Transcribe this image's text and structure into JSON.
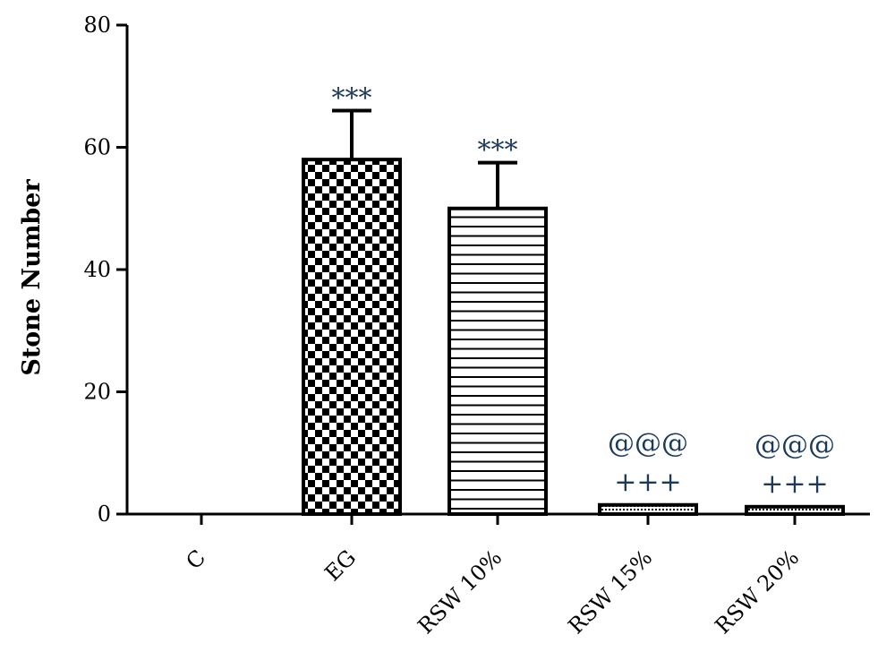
{
  "chart_data": {
    "type": "bar",
    "title": "",
    "xlabel": "",
    "ylabel": "Stone Number",
    "ylim": [
      0,
      80
    ],
    "yticks": [
      0,
      20,
      40,
      60,
      80
    ],
    "grid": false,
    "categories": [
      "C",
      "EG",
      "RSW 10%",
      "RSW 15%",
      "RSW 20%"
    ],
    "values": [
      0,
      58,
      50,
      1.5,
      1.2
    ],
    "errors": [
      0,
      8,
      7.5,
      0,
      0
    ],
    "patterns": [
      "none",
      "checkerboard",
      "horizontal-lines",
      "dots",
      "dots"
    ],
    "annotations": [
      {
        "category": "EG",
        "lines": [
          "***"
        ]
      },
      {
        "category": "RSW 10%",
        "lines": [
          "***"
        ]
      },
      {
        "category": "RSW 15%",
        "lines": [
          "@@@",
          "+++"
        ]
      },
      {
        "category": "RSW 20%",
        "lines": [
          "@@@",
          "+++"
        ]
      }
    ],
    "colors": {
      "bar_stroke": "#000000",
      "annotation": "#1c3a5a"
    }
  }
}
